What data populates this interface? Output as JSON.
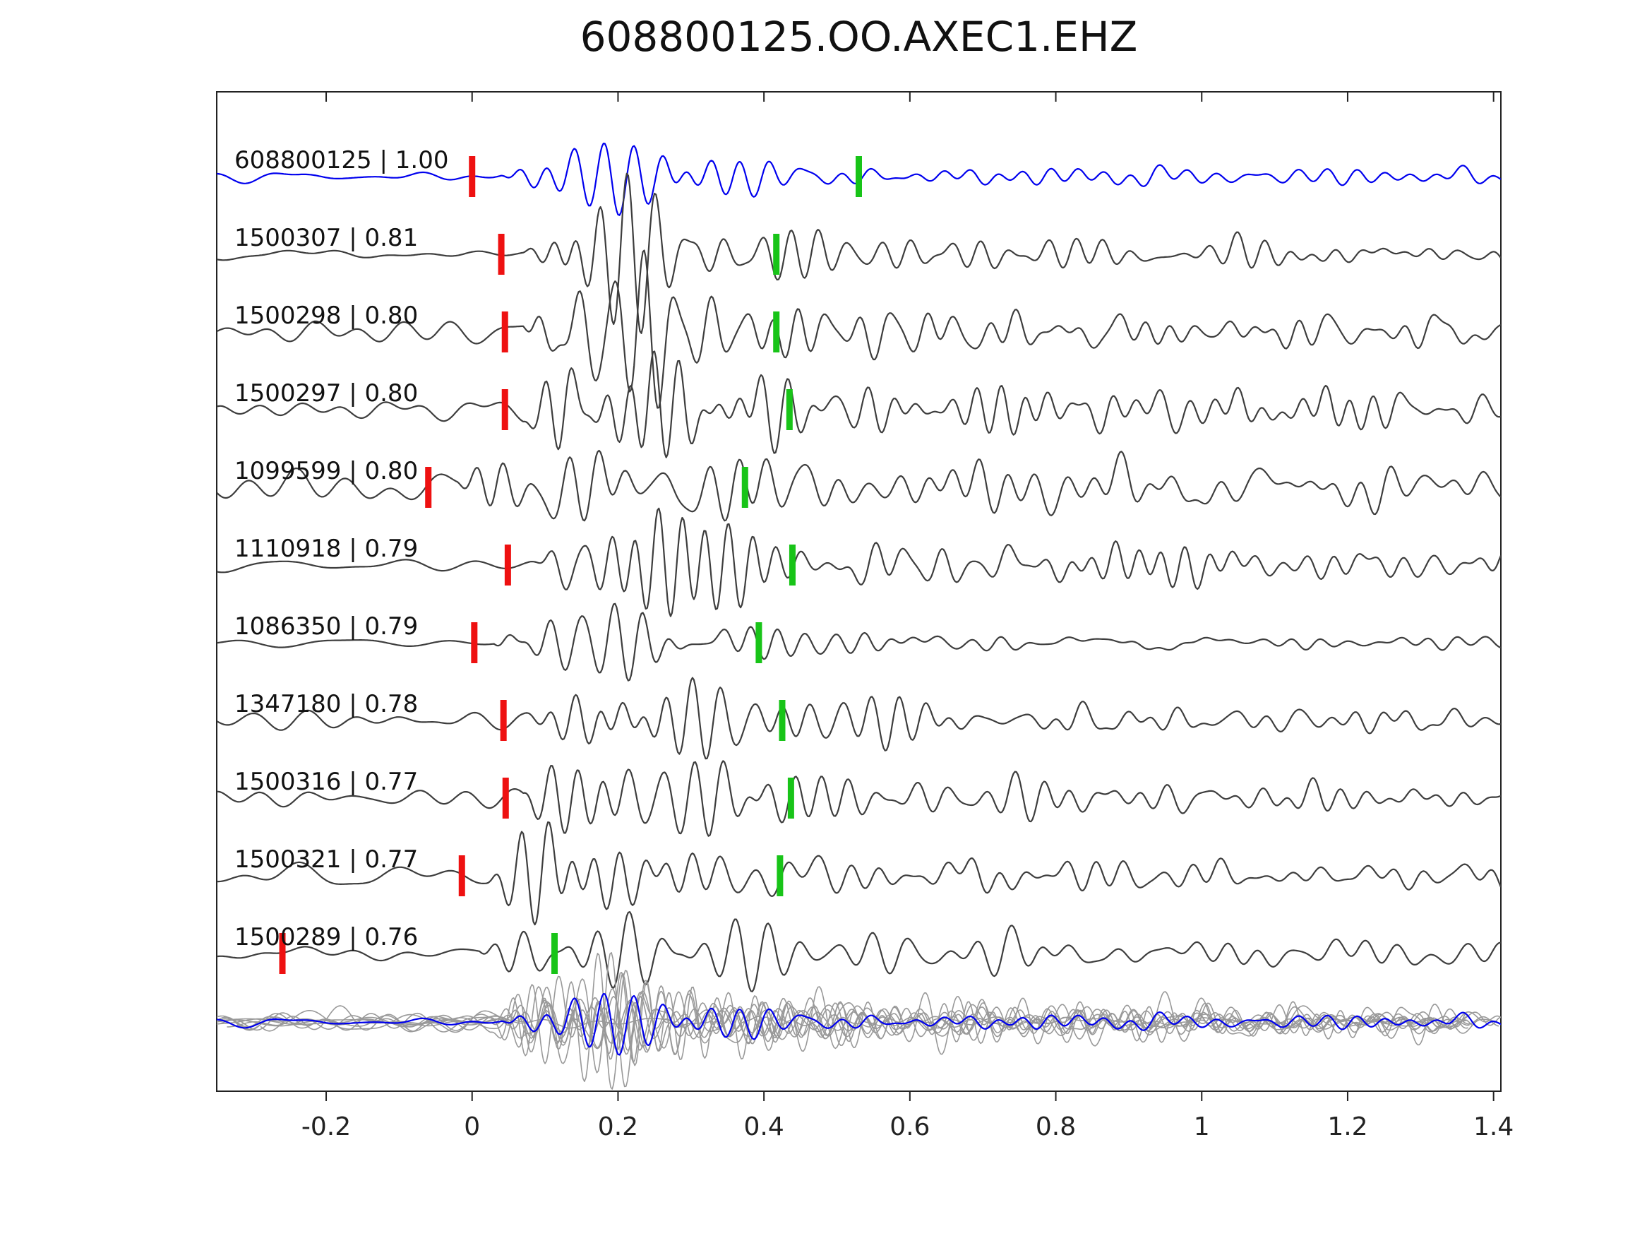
{
  "title": "608800125.OO.AXEC1.EHZ",
  "chart_data": {
    "type": "line",
    "subtype": "seismogram-template-matching",
    "xlim": [
      -0.35,
      1.41
    ],
    "xticks": [
      -0.2,
      0,
      0.2,
      0.4,
      0.6,
      0.8,
      1,
      1.2,
      1.4
    ],
    "xticklabels": [
      "-0.2",
      "0",
      "0.2",
      "0.4",
      "0.6",
      "0.8",
      "1",
      "1.2",
      "1.4"
    ],
    "grid": false,
    "legend": "none",
    "colors": {
      "reference_trace": "#0000ee",
      "trace": "#3d3d3d",
      "overlay_trace": "#999999",
      "pick_red": "#ee1111",
      "pick_green": "#18c418",
      "axis": "#222222",
      "label_text": "#111111"
    },
    "traces": [
      {
        "id": "608800125",
        "similarity": "1.00",
        "label": "608800125 | 1.00",
        "color": "reference",
        "red_pick": 0.0,
        "green_pick": 0.53,
        "waveform": {
          "seed": 11,
          "onset": 0.04,
          "amp": 48,
          "noise": 5,
          "coda": 0.28
        }
      },
      {
        "id": "1500307",
        "similarity": "0.81",
        "label": "1500307 | 0.81",
        "color": "trace",
        "red_pick": 0.04,
        "green_pick": 0.417,
        "waveform": {
          "seed": 22,
          "onset": 0.07,
          "amp": 66,
          "noise": 5,
          "coda": 0.3
        }
      },
      {
        "id": "1500298",
        "similarity": "0.80",
        "label": "1500298 | 0.80",
        "color": "trace",
        "red_pick": 0.045,
        "green_pick": 0.417,
        "waveform": {
          "seed": 33,
          "onset": 0.07,
          "amp": 66,
          "noise": 13,
          "coda": 0.38
        }
      },
      {
        "id": "1500297",
        "similarity": "0.80",
        "label": "1500297 | 0.80",
        "color": "trace",
        "red_pick": 0.045,
        "green_pick": 0.435,
        "waveform": {
          "seed": 44,
          "onset": 0.07,
          "amp": 66,
          "noise": 12,
          "coda": 0.38
        }
      },
      {
        "id": "1099599",
        "similarity": "0.80",
        "label": "1099599 | 0.80",
        "color": "trace",
        "red_pick": -0.06,
        "green_pick": 0.374,
        "waveform": {
          "seed": 55,
          "onset": -0.02,
          "amp": 58,
          "noise": 17,
          "coda": 0.55
        }
      },
      {
        "id": "1110918",
        "similarity": "0.79",
        "label": "1110918 | 0.79",
        "color": "trace",
        "red_pick": 0.049,
        "green_pick": 0.439,
        "waveform": {
          "seed": 66,
          "onset": 0.08,
          "amp": 64,
          "noise": 8,
          "coda": 0.45
        }
      },
      {
        "id": "1086350",
        "similarity": "0.79",
        "label": "1086350 | 0.79",
        "color": "trace",
        "red_pick": 0.003,
        "green_pick": 0.393,
        "waveform": {
          "seed": 77,
          "onset": 0.03,
          "amp": 70,
          "noise": 5,
          "coda": 0.14
        }
      },
      {
        "id": "1347180",
        "similarity": "0.78",
        "label": "1347180 | 0.78",
        "color": "trace",
        "red_pick": 0.043,
        "green_pick": 0.425,
        "waveform": {
          "seed": 88,
          "onset": 0.07,
          "amp": 64,
          "noise": 9,
          "coda": 0.3
        }
      },
      {
        "id": "1500316",
        "similarity": "0.77",
        "label": "1500316 | 0.77",
        "color": "trace",
        "red_pick": 0.046,
        "green_pick": 0.437,
        "waveform": {
          "seed": 99,
          "onset": 0.07,
          "amp": 68,
          "noise": 9,
          "coda": 0.32
        }
      },
      {
        "id": "1500321",
        "similarity": "0.77",
        "label": "1500321 | 0.77",
        "color": "trace",
        "red_pick": -0.014,
        "green_pick": 0.422,
        "waveform": {
          "seed": 110,
          "onset": 0.02,
          "amp": 60,
          "noise": 11,
          "coda": 0.4
        }
      },
      {
        "id": "1500289",
        "similarity": "0.76",
        "label": "1500289 | 0.76",
        "color": "trace",
        "red_pick": -0.26,
        "green_pick": 0.113,
        "waveform": {
          "seed": 121,
          "onset": 0.01,
          "amp": 56,
          "noise": 11,
          "coda": 0.35
        }
      }
    ],
    "overlay": {
      "description": "all traces superimposed aligned on red pick, reference trace in blue on top",
      "aligned_on": "red_pick",
      "amplitude_factor": 0.85
    }
  }
}
